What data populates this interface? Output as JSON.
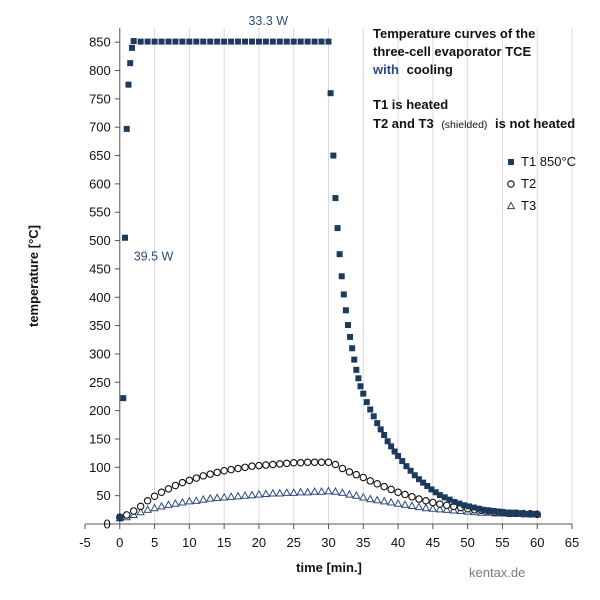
{
  "chart_data": {
    "type": "scatter",
    "title": "Temperature curves of the three-cell evaporator TCE with cooling",
    "xlabel": "time [min.]",
    "ylabel": "temperature [°C]",
    "xlim": [
      -5,
      65
    ],
    "ylim": [
      0,
      875
    ],
    "xticks": [
      -5,
      0,
      5,
      10,
      15,
      20,
      25,
      30,
      35,
      40,
      45,
      50,
      55,
      60,
      65
    ],
    "yticks": [
      0,
      50,
      100,
      150,
      200,
      250,
      300,
      350,
      400,
      450,
      500,
      550,
      600,
      650,
      700,
      750,
      800,
      850
    ],
    "grid": "vertical",
    "legend_position": "right",
    "series": [
      {
        "name": "T1 850°C",
        "marker": "square",
        "color": "#1c3a5e",
        "points": [
          [
            0,
            12
          ],
          [
            0.5,
            222
          ],
          [
            0.75,
            505
          ],
          [
            1,
            697
          ],
          [
            1.25,
            775
          ],
          [
            1.5,
            813
          ],
          [
            1.75,
            840
          ],
          [
            2,
            852
          ],
          [
            3,
            851
          ],
          [
            4,
            851
          ],
          [
            5,
            851
          ],
          [
            6,
            851
          ],
          [
            7,
            851
          ],
          [
            8,
            851
          ],
          [
            9,
            851
          ],
          [
            10,
            851
          ],
          [
            11,
            851
          ],
          [
            12,
            851
          ],
          [
            13,
            851
          ],
          [
            14,
            851
          ],
          [
            15,
            851
          ],
          [
            16,
            851
          ],
          [
            17,
            851
          ],
          [
            18,
            851
          ],
          [
            19,
            851
          ],
          [
            20,
            851
          ],
          [
            21,
            851
          ],
          [
            22,
            851
          ],
          [
            23,
            851
          ],
          [
            24,
            851
          ],
          [
            25,
            851
          ],
          [
            26,
            851
          ],
          [
            27,
            851
          ],
          [
            28,
            851
          ],
          [
            29,
            851
          ],
          [
            30,
            851
          ],
          [
            30.3,
            760
          ],
          [
            30.7,
            650
          ],
          [
            31,
            575
          ],
          [
            31.3,
            522
          ],
          [
            31.6,
            476
          ],
          [
            31.9,
            437
          ],
          [
            32.2,
            405
          ],
          [
            32.5,
            377
          ],
          [
            32.8,
            351
          ],
          [
            33.1,
            330
          ],
          [
            33.4,
            310
          ],
          [
            33.7,
            290
          ],
          [
            34,
            272
          ],
          [
            34.3,
            257
          ],
          [
            34.6,
            243
          ],
          [
            35,
            230
          ],
          [
            35.5,
            215
          ],
          [
            36,
            202
          ],
          [
            36.5,
            190
          ],
          [
            37,
            178
          ],
          [
            37.5,
            167
          ],
          [
            38,
            157
          ],
          [
            38.5,
            146
          ],
          [
            39,
            137
          ],
          [
            39.5,
            128
          ],
          [
            40,
            120
          ],
          [
            40.6,
            111
          ],
          [
            41.2,
            102
          ],
          [
            41.8,
            94
          ],
          [
            42.4,
            86
          ],
          [
            43,
            79
          ],
          [
            43.6,
            73
          ],
          [
            44.2,
            67
          ],
          [
            44.8,
            61
          ],
          [
            45.4,
            56
          ],
          [
            46,
            51
          ],
          [
            46.7,
            47
          ],
          [
            47.4,
            43
          ],
          [
            48.1,
            39
          ],
          [
            48.8,
            36
          ],
          [
            49.5,
            33
          ],
          [
            50.2,
            31
          ],
          [
            50.9,
            29
          ],
          [
            51.6,
            27
          ],
          [
            52.3,
            25
          ],
          [
            53,
            24
          ],
          [
            53.7,
            23
          ],
          [
            54.4,
            22
          ],
          [
            55.1,
            21
          ],
          [
            55.8,
            20
          ],
          [
            56.5,
            20
          ],
          [
            57.2,
            19
          ],
          [
            57.9,
            19
          ],
          [
            58.6,
            18
          ],
          [
            59.3,
            18
          ],
          [
            60,
            17
          ]
        ]
      },
      {
        "name": "T2",
        "marker": "circle-open",
        "color": "#111111",
        "points": [
          [
            0,
            12
          ],
          [
            1,
            16
          ],
          [
            2,
            23
          ],
          [
            3,
            31
          ],
          [
            4,
            41
          ],
          [
            5,
            49
          ],
          [
            6,
            56
          ],
          [
            7,
            62
          ],
          [
            8,
            68
          ],
          [
            9,
            73
          ],
          [
            10,
            77
          ],
          [
            11,
            81
          ],
          [
            12,
            85
          ],
          [
            13,
            88
          ],
          [
            14,
            91
          ],
          [
            15,
            94
          ],
          [
            16,
            96
          ],
          [
            17,
            98
          ],
          [
            18,
            100
          ],
          [
            19,
            102
          ],
          [
            20,
            103
          ],
          [
            21,
            104
          ],
          [
            22,
            105
          ],
          [
            23,
            106
          ],
          [
            24,
            107
          ],
          [
            25,
            108
          ],
          [
            26,
            108
          ],
          [
            27,
            109
          ],
          [
            28,
            109
          ],
          [
            29,
            109
          ],
          [
            30,
            109
          ],
          [
            31,
            105
          ],
          [
            32,
            98
          ],
          [
            33,
            92
          ],
          [
            34,
            87
          ],
          [
            35,
            82
          ],
          [
            36,
            76
          ],
          [
            37,
            71
          ],
          [
            38,
            66
          ],
          [
            39,
            61
          ],
          [
            40,
            56
          ],
          [
            41,
            52
          ],
          [
            42,
            48
          ],
          [
            43,
            44
          ],
          [
            44,
            41
          ],
          [
            45,
            38
          ],
          [
            46,
            35
          ],
          [
            47,
            33
          ],
          [
            48,
            31
          ],
          [
            49,
            29
          ],
          [
            50,
            27
          ],
          [
            51,
            25
          ],
          [
            52,
            24
          ],
          [
            53,
            23
          ],
          [
            54,
            21
          ],
          [
            55,
            20
          ],
          [
            56,
            19
          ],
          [
            57,
            19
          ],
          [
            58,
            18
          ],
          [
            59,
            18
          ],
          [
            60,
            17
          ]
        ]
      },
      {
        "name": "T3",
        "marker": "triangle-open",
        "color": "#2d4a7a",
        "points": [
          [
            0,
            10
          ],
          [
            1,
            12
          ],
          [
            2,
            16
          ],
          [
            3,
            21
          ],
          [
            4,
            25
          ],
          [
            5,
            28
          ],
          [
            6,
            31
          ],
          [
            7,
            34
          ],
          [
            8,
            36
          ],
          [
            9,
            38
          ],
          [
            10,
            40
          ],
          [
            11,
            41
          ],
          [
            12,
            43
          ],
          [
            13,
            45
          ],
          [
            14,
            46
          ],
          [
            15,
            47
          ],
          [
            16,
            48
          ],
          [
            17,
            49
          ],
          [
            18,
            50
          ],
          [
            19,
            51
          ],
          [
            20,
            52
          ],
          [
            21,
            53
          ],
          [
            22,
            54
          ],
          [
            23,
            54
          ],
          [
            24,
            55
          ],
          [
            25,
            55
          ],
          [
            26,
            56
          ],
          [
            27,
            56
          ],
          [
            28,
            57
          ],
          [
            29,
            57
          ],
          [
            30,
            58
          ],
          [
            31,
            57
          ],
          [
            32,
            55
          ],
          [
            33,
            52
          ],
          [
            34,
            50
          ],
          [
            35,
            47
          ],
          [
            36,
            44
          ],
          [
            37,
            42
          ],
          [
            38,
            40
          ],
          [
            39,
            38
          ],
          [
            40,
            36
          ],
          [
            41,
            34
          ],
          [
            42,
            32
          ],
          [
            43,
            30
          ],
          [
            44,
            28
          ],
          [
            45,
            27
          ],
          [
            46,
            26
          ],
          [
            47,
            25
          ],
          [
            48,
            24
          ],
          [
            49,
            23
          ],
          [
            50,
            22
          ],
          [
            51,
            21
          ],
          [
            52,
            20
          ],
          [
            53,
            20
          ],
          [
            54,
            19
          ],
          [
            55,
            19
          ],
          [
            56,
            18
          ],
          [
            57,
            18
          ],
          [
            58,
            18
          ],
          [
            59,
            17
          ],
          [
            60,
            17
          ]
        ]
      }
    ],
    "annotations": [
      {
        "text": "33.3 W",
        "x": 18.5,
        "y": 880
      },
      {
        "text": "39.5 W",
        "x": 2.0,
        "y": 465
      }
    ]
  },
  "info_box": {
    "title_line1": "Temperature curves of the",
    "title_line2": "three-cell evaporator TCE",
    "cooling_highlight": "with",
    "cooling_word": "cooling",
    "line_heated": "T1 is heated",
    "line_not_heated_a": "T2 and T3",
    "line_not_heated_small": "(shielded)",
    "line_not_heated_b": "is not heated"
  },
  "colors": {
    "series_dark": "#1c3a5e",
    "highlight_blue": "#2d4a7a",
    "grid": "#d9d9d9",
    "axis": "#555555"
  },
  "watermark": "kentax.de"
}
